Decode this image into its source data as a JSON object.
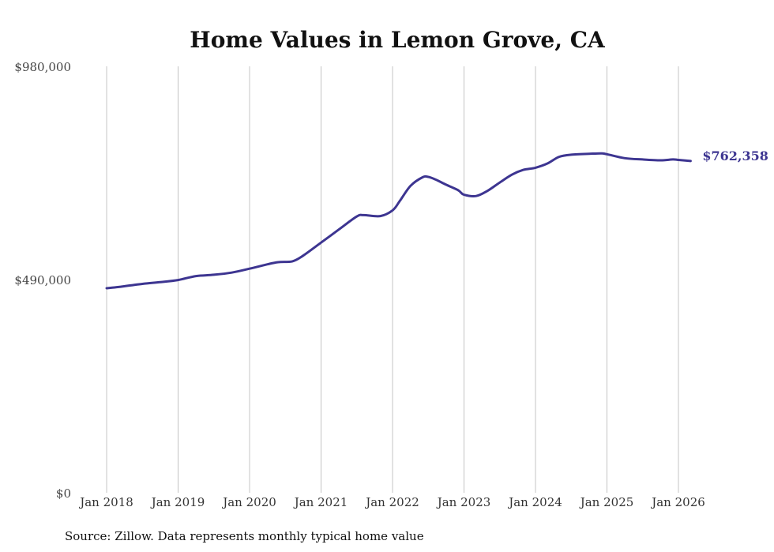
{
  "chart_data": {
    "type": "line",
    "title": "Home Values in Lemon Grove, CA",
    "xlabel": "",
    "ylabel": "",
    "ylim": [
      0,
      980000
    ],
    "yticks": [
      0,
      490000,
      980000
    ],
    "ytick_labels": [
      "$0",
      "$490,000",
      "$980,000"
    ],
    "xtick_labels": [
      "Jan 2018",
      "Jan 2019",
      "Jan 2020",
      "Jan 2021",
      "Jan 2022",
      "Jan 2023",
      "Jan 2024",
      "Jan 2025",
      "Jan 2026"
    ],
    "xtick_positions": [
      2018,
      2019,
      2020,
      2021,
      2022,
      2023,
      2024,
      2025,
      2026
    ],
    "xlim": [
      2018,
      2026.2
    ],
    "grid": "vertical",
    "color": "#3d3591",
    "end_label": "$762,358",
    "series": [
      {
        "name": "Typical home value",
        "x": [
          2018.0,
          2018.17,
          2018.5,
          2018.75,
          2019.0,
          2019.25,
          2019.5,
          2019.75,
          2020.0,
          2020.25,
          2020.4,
          2020.6,
          2020.75,
          2021.0,
          2021.25,
          2021.5,
          2021.6,
          2021.83,
          2022.0,
          2022.1,
          2022.25,
          2022.42,
          2022.5,
          2022.6,
          2022.75,
          2022.92,
          2023.0,
          2023.17,
          2023.33,
          2023.5,
          2023.67,
          2023.83,
          2024.0,
          2024.17,
          2024.33,
          2024.5,
          2024.75,
          2024.92,
          2025.0,
          2025.25,
          2025.5,
          2025.75,
          2025.92,
          2026.0,
          2026.17
        ],
        "values": [
          470000,
          473000,
          480000,
          484000,
          489000,
          498000,
          501000,
          506000,
          515000,
          525000,
          530000,
          532000,
          545000,
          575000,
          605000,
          635000,
          638000,
          636000,
          649000,
          670000,
          705000,
          725000,
          726000,
          720000,
          708000,
          695000,
          685000,
          682000,
          694000,
          713000,
          731000,
          742000,
          747000,
          757000,
          772000,
          777000,
          779000,
          780000,
          778000,
          769000,
          766000,
          764000,
          766000,
          765000,
          762358
        ]
      }
    ]
  },
  "footer": {
    "source": "Source: Zillow. Data represents monthly typical home value"
  }
}
